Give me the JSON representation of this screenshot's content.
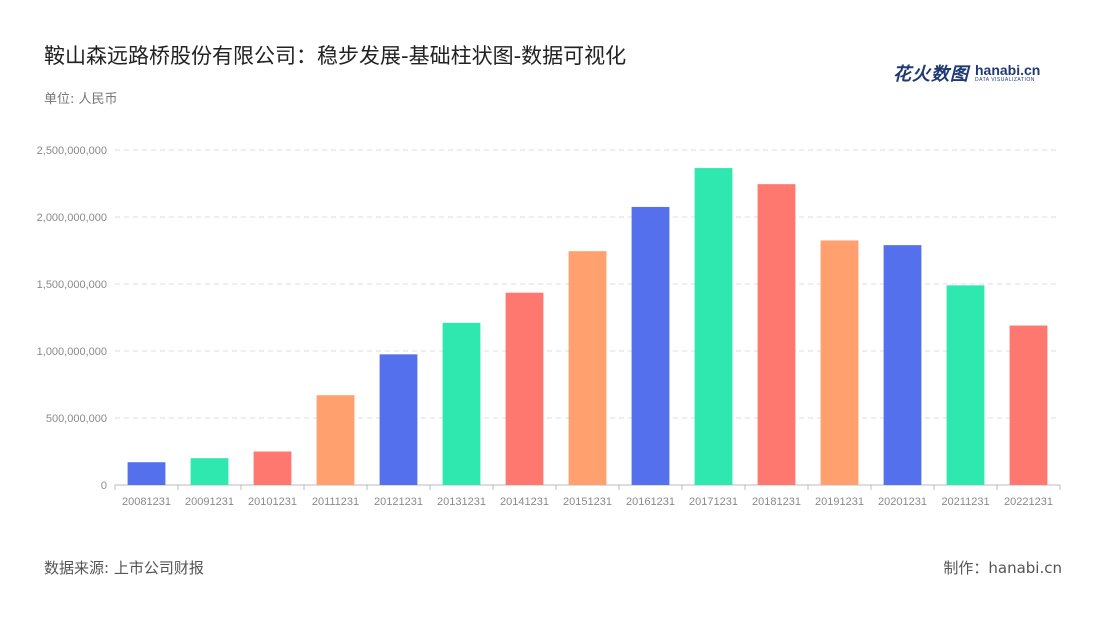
{
  "header": {
    "title": "鞍山森远路桥股份有限公司：稳步发展-基础柱状图-数据可视化",
    "unit": "单位: 人民币"
  },
  "logo": {
    "text_cn": "花火数图",
    "text_en": "hanabi.cn",
    "subtext": "DATA VISUALIZATION"
  },
  "footer": {
    "source": "数据来源: 上市公司财报",
    "credit": "制作：hanabi.cn"
  },
  "chart_data": {
    "type": "bar",
    "categories": [
      "20081231",
      "20091231",
      "20101231",
      "20111231",
      "20121231",
      "20131231",
      "20141231",
      "20151231",
      "20161231",
      "20171231",
      "20181231",
      "20191231",
      "20201231",
      "20211231",
      "20221231"
    ],
    "values": [
      170000000,
      200000000,
      250000000,
      670000000,
      975000000,
      1210000000,
      1435000000,
      1745000000,
      2075000000,
      2365000000,
      2245000000,
      1825000000,
      1790000000,
      1490000000,
      1190000000
    ],
    "ylim": [
      0,
      2500000000
    ],
    "yticks": [
      0,
      500000000,
      1000000000,
      1500000000,
      2000000000,
      2500000000
    ],
    "ytick_labels": [
      "0",
      "500,000,000",
      "1,000,000,000",
      "1,500,000,000",
      "2,000,000,000",
      "2,500,000,000"
    ],
    "colors": [
      "#5470ec",
      "#2ee8b0",
      "#ff7870",
      "#ffa06e"
    ],
    "grid": true,
    "xlabel": "",
    "ylabel": ""
  }
}
